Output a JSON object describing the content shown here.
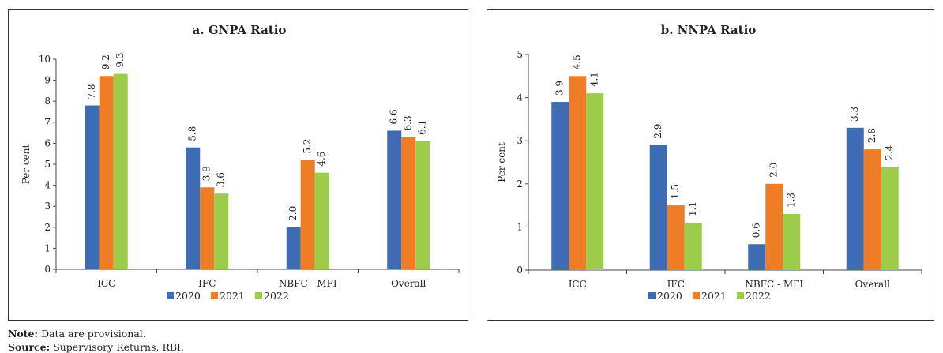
{
  "chart_data": [
    {
      "type": "bar",
      "title": "a. GNPA Ratio",
      "ylabel": "Per cent",
      "ylim": [
        0,
        10
      ],
      "yticks": [
        0,
        1,
        2,
        3,
        4,
        5,
        6,
        7,
        8,
        9,
        10
      ],
      "categories": [
        "ICC",
        "IFC",
        "NBFC - MFI",
        "Overall"
      ],
      "series": [
        {
          "name": "2020",
          "color": "#3d6cb5",
          "values": [
            7.8,
            5.8,
            2.0,
            6.6
          ],
          "labels": [
            "7.8",
            "5.8",
            "2.0",
            "6.6"
          ]
        },
        {
          "name": "2021",
          "color": "#ef7d26",
          "values": [
            9.2,
            3.9,
            5.2,
            6.3
          ],
          "labels": [
            "9.2",
            "3.9",
            "5.2",
            "6.3"
          ]
        },
        {
          "name": "2022",
          "color": "#9bcd4a",
          "values": [
            9.3,
            3.6,
            4.6,
            6.1
          ],
          "labels": [
            "9.3",
            "3.6",
            "4.6",
            "6.1"
          ]
        }
      ],
      "legend_position": "bottom-center",
      "grid": false
    },
    {
      "type": "bar",
      "title": "b. NNPA Ratio",
      "ylabel": "Per cent",
      "ylim": [
        0,
        5
      ],
      "yticks": [
        0,
        1,
        2,
        3,
        4,
        5
      ],
      "categories": [
        "ICC",
        "IFC",
        "NBFC - MFI",
        "Overall"
      ],
      "series": [
        {
          "name": "2020",
          "color": "#3d6cb5",
          "values": [
            3.9,
            2.9,
            0.6,
            3.3
          ],
          "labels": [
            "3.9",
            "2.9",
            "0.6",
            "3.3"
          ]
        },
        {
          "name": "2021",
          "color": "#ef7d26",
          "values": [
            4.5,
            1.5,
            2.0,
            2.8
          ],
          "labels": [
            "4.5",
            "1.5",
            "2.0",
            "2.8"
          ]
        },
        {
          "name": "2022",
          "color": "#9bcd4a",
          "values": [
            4.1,
            1.1,
            1.3,
            2.4
          ],
          "labels": [
            "4.1",
            "1.1",
            "1.3",
            "2.4"
          ]
        }
      ],
      "legend_position": "bottom-center",
      "grid": false
    }
  ],
  "footer": {
    "note_label": "Note:",
    "note_text": " Data are provisional.",
    "source_label": "Source:",
    "source_text": " Supervisory Returns, RBI."
  }
}
